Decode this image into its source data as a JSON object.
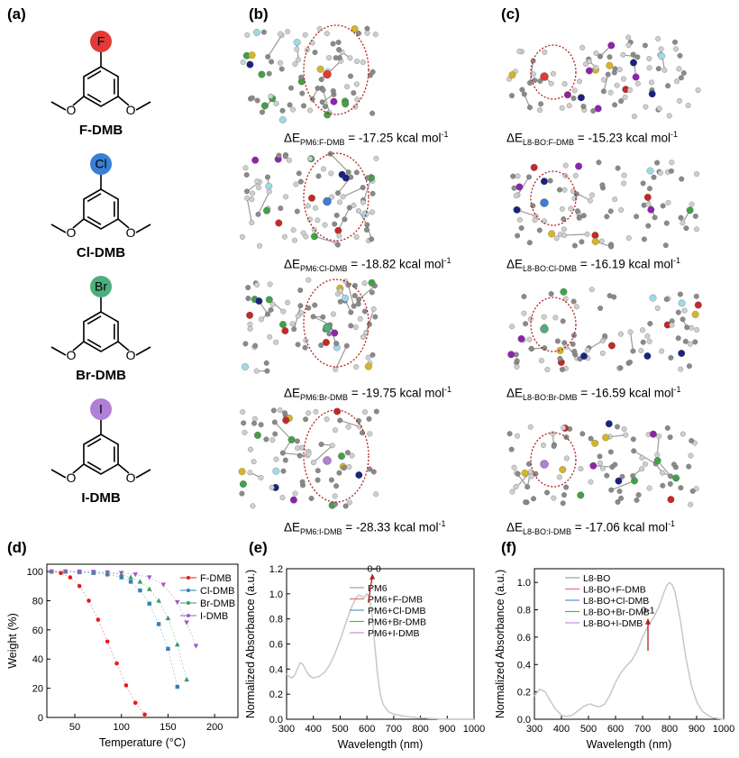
{
  "panel_labels": {
    "a": "(a)",
    "b": "(b)",
    "c": "(c)",
    "d": "(d)",
    "e": "(e)",
    "f": "(f)"
  },
  "molecules": [
    {
      "name": "F-DMB",
      "atom": "F",
      "color": "#e53935"
    },
    {
      "name": "Cl-DMB",
      "atom": "Cl",
      "color": "#3a7fd5"
    },
    {
      "name": "Br-DMB",
      "atom": "Br",
      "color": "#4caf7d"
    },
    {
      "name": "I-DMB",
      "atom": "I",
      "color": "#b07fd8"
    }
  ],
  "pm6_energies": [
    {
      "sub": "PM6:F-DMB",
      "value": "-17.25",
      "unit": "kcal mol",
      "sup": "-1"
    },
    {
      "sub": "PM6:Cl-DMB",
      "value": "-18.82",
      "unit": "kcal mol",
      "sup": "-1"
    },
    {
      "sub": "PM6:Br-DMB",
      "value": "-19.75",
      "unit": "kcal mol",
      "sup": "-1"
    },
    {
      "sub": "PM6:I-DMB",
      "value": "-28.33",
      "unit": "kcal mol",
      "sup": "-1"
    }
  ],
  "l8_energies": [
    {
      "sub": "L8-BO:F-DMB",
      "value": "-15.23",
      "unit": "kcal mol",
      "sup": "-1"
    },
    {
      "sub": "L8-BO:Cl-DMB",
      "value": "-16.19",
      "unit": "kcal mol",
      "sup": "-1"
    },
    {
      "sub": "L8-BO:Br-DMB",
      "value": "-16.59",
      "unit": "kcal mol",
      "sup": "-1"
    },
    {
      "sub": "L8-BO:I-DMB",
      "value": "-17.06",
      "unit": "kcal mol",
      "sup": "-1"
    }
  ],
  "delta_symbol": "ΔE",
  "equals": " = ",
  "chart_data": [
    {
      "type": "scatter",
      "panel": "(d)",
      "xlabel": "Temperature (°C)",
      "ylabel": "Weight (%)",
      "xlim": [
        20,
        225
      ],
      "ylim": [
        0,
        105
      ],
      "xticks": [
        50,
        100,
        150,
        200
      ],
      "yticks": [
        0,
        20,
        40,
        60,
        80,
        100
      ],
      "legend_position": "top-right",
      "series": [
        {
          "name": "F-DMB",
          "color": "#e41a1c",
          "marker": "circle",
          "x": [
            25,
            35,
            45,
            55,
            65,
            75,
            85,
            95,
            105,
            115,
            125
          ],
          "y": [
            100,
            99,
            96,
            90,
            80,
            67,
            52,
            37,
            22,
            10,
            2
          ]
        },
        {
          "name": "Cl-DMB",
          "color": "#377eb8",
          "marker": "square",
          "x": [
            25,
            40,
            55,
            70,
            85,
            100,
            110,
            120,
            130,
            140,
            150,
            160
          ],
          "y": [
            100,
            100,
            99.5,
            99,
            98,
            96,
            93,
            87,
            78,
            64,
            47,
            21
          ]
        },
        {
          "name": "Br-DMB",
          "color": "#3a9a6a",
          "marker": "triangle-up",
          "x": [
            25,
            40,
            55,
            70,
            85,
            100,
            110,
            120,
            130,
            140,
            150,
            160,
            170
          ],
          "y": [
            100,
            100,
            99.8,
            99.5,
            99,
            98,
            96,
            93,
            88,
            80,
            68,
            50,
            26
          ]
        },
        {
          "name": "I-DMB",
          "color": "#9b59d0",
          "marker": "triangle-down",
          "x": [
            25,
            40,
            55,
            70,
            85,
            100,
            115,
            130,
            145,
            160,
            170,
            180
          ],
          "y": [
            100,
            100,
            100,
            99.8,
            99.5,
            99,
            98,
            96,
            91,
            79,
            65,
            49
          ]
        }
      ]
    },
    {
      "type": "line",
      "panel": "(e)",
      "xlabel": "Wavelength (nm)",
      "ylabel": "Normalized Absorbance (a.u.)",
      "xlim": [
        300,
        1000
      ],
      "ylim": [
        0,
        1.2
      ],
      "xticks": [
        300,
        400,
        500,
        600,
        700,
        800,
        900,
        1000
      ],
      "yticks": [
        0.0,
        0.2,
        0.4,
        0.6,
        0.8,
        1.0,
        1.2
      ],
      "legend_position": "top-right",
      "annotation": {
        "text": "0-0",
        "arrow_from": [
          605,
          0.93
        ],
        "arrow_to": [
          620,
          1.14
        ]
      },
      "x": [
        300,
        310,
        320,
        330,
        340,
        350,
        360,
        370,
        380,
        390,
        400,
        420,
        440,
        460,
        480,
        500,
        520,
        540,
        560,
        570,
        580,
        590,
        600,
        610,
        620,
        630,
        640,
        650,
        660,
        680,
        700,
        750,
        800,
        850,
        900,
        950,
        1000
      ],
      "series": [
        {
          "name": "PM6",
          "color": "#9e9e9e",
          "y": [
            0.36,
            0.34,
            0.33,
            0.35,
            0.4,
            0.45,
            0.44,
            0.4,
            0.36,
            0.34,
            0.33,
            0.34,
            0.37,
            0.43,
            0.52,
            0.63,
            0.76,
            0.88,
            0.97,
            0.99,
            0.98,
            0.97,
            1.0,
            0.97,
            0.82,
            0.57,
            0.35,
            0.2,
            0.12,
            0.06,
            0.04,
            0.02,
            0.01,
            0.005,
            0.0,
            0.0,
            0.0
          ]
        },
        {
          "name": "PM6+F-DMB",
          "color": "#e07070",
          "y": [
            0.36,
            0.34,
            0.33,
            0.35,
            0.4,
            0.45,
            0.44,
            0.4,
            0.36,
            0.34,
            0.33,
            0.34,
            0.37,
            0.43,
            0.52,
            0.63,
            0.76,
            0.88,
            0.97,
            0.99,
            0.98,
            0.97,
            1.0,
            0.97,
            0.82,
            0.57,
            0.35,
            0.2,
            0.12,
            0.06,
            0.04,
            0.02,
            0.01,
            0.005,
            0.0,
            0.0,
            0.0
          ]
        },
        {
          "name": "PM6+Cl-DMB",
          "color": "#5a8fd0",
          "y": [
            0.36,
            0.34,
            0.33,
            0.35,
            0.4,
            0.45,
            0.44,
            0.4,
            0.36,
            0.34,
            0.33,
            0.34,
            0.37,
            0.43,
            0.52,
            0.63,
            0.76,
            0.88,
            0.97,
            0.99,
            0.98,
            0.97,
            1.0,
            0.97,
            0.82,
            0.57,
            0.35,
            0.2,
            0.12,
            0.06,
            0.04,
            0.02,
            0.01,
            0.005,
            0.0,
            0.0,
            0.0
          ]
        },
        {
          "name": "PM6+Br-DMB",
          "color": "#4caf7d",
          "y": [
            0.36,
            0.34,
            0.33,
            0.35,
            0.4,
            0.45,
            0.44,
            0.4,
            0.36,
            0.34,
            0.33,
            0.34,
            0.37,
            0.43,
            0.52,
            0.63,
            0.76,
            0.88,
            0.97,
            0.99,
            0.98,
            0.97,
            1.0,
            0.97,
            0.82,
            0.57,
            0.35,
            0.2,
            0.12,
            0.06,
            0.04,
            0.02,
            0.01,
            0.005,
            0.0,
            0.0,
            0.0
          ]
        },
        {
          "name": "PM6+I-DMB",
          "color": "#c090e0",
          "y": [
            0.36,
            0.34,
            0.33,
            0.35,
            0.4,
            0.45,
            0.44,
            0.4,
            0.36,
            0.34,
            0.33,
            0.34,
            0.37,
            0.43,
            0.52,
            0.63,
            0.76,
            0.88,
            0.97,
            0.99,
            0.98,
            0.97,
            1.0,
            0.97,
            0.82,
            0.57,
            0.35,
            0.2,
            0.12,
            0.06,
            0.04,
            0.02,
            0.01,
            0.005,
            0.0,
            0.0,
            0.0
          ]
        }
      ]
    },
    {
      "type": "line",
      "panel": "(f)",
      "xlabel": "Wavelength (nm)",
      "ylabel": "Normalized Absorbance (a.u.)",
      "xlim": [
        300,
        1000
      ],
      "ylim": [
        0,
        1.1
      ],
      "xticks": [
        300,
        400,
        500,
        600,
        700,
        800,
        900,
        1000
      ],
      "yticks": [
        0.0,
        0.2,
        0.4,
        0.6,
        0.8,
        1.0
      ],
      "legend_position": "top-left",
      "annotation": {
        "text": "0-1",
        "arrow_from": [
          720,
          0.5
        ],
        "arrow_to": [
          720,
          0.72
        ]
      },
      "x": [
        300,
        320,
        340,
        360,
        380,
        400,
        420,
        440,
        460,
        480,
        500,
        510,
        520,
        540,
        560,
        580,
        600,
        620,
        640,
        660,
        680,
        700,
        720,
        740,
        760,
        780,
        790,
        800,
        810,
        820,
        840,
        860,
        880,
        900,
        920,
        940,
        960,
        980,
        1000
      ],
      "series": [
        {
          "name": "L8-BO",
          "color": "#9e9e9e",
          "y": [
            0.17,
            0.22,
            0.2,
            0.13,
            0.07,
            0.03,
            0.02,
            0.03,
            0.06,
            0.09,
            0.11,
            0.11,
            0.1,
            0.09,
            0.11,
            0.18,
            0.27,
            0.34,
            0.39,
            0.43,
            0.5,
            0.6,
            0.68,
            0.74,
            0.82,
            0.93,
            0.98,
            1.0,
            0.98,
            0.93,
            0.72,
            0.45,
            0.25,
            0.13,
            0.06,
            0.03,
            0.01,
            0.005,
            0.0
          ]
        },
        {
          "name": "L8-BO+F-DMB",
          "color": "#e07070",
          "y": [
            0.17,
            0.22,
            0.2,
            0.13,
            0.07,
            0.03,
            0.02,
            0.03,
            0.06,
            0.09,
            0.11,
            0.11,
            0.1,
            0.09,
            0.11,
            0.18,
            0.27,
            0.34,
            0.39,
            0.43,
            0.5,
            0.6,
            0.68,
            0.74,
            0.82,
            0.93,
            0.98,
            1.0,
            0.98,
            0.93,
            0.72,
            0.45,
            0.25,
            0.13,
            0.06,
            0.03,
            0.01,
            0.005,
            0.0
          ]
        },
        {
          "name": "L8-BO+Cl-DMB",
          "color": "#5a8fd0",
          "y": [
            0.17,
            0.22,
            0.2,
            0.13,
            0.07,
            0.03,
            0.02,
            0.03,
            0.06,
            0.09,
            0.11,
            0.11,
            0.1,
            0.09,
            0.11,
            0.18,
            0.27,
            0.34,
            0.39,
            0.43,
            0.5,
            0.6,
            0.68,
            0.74,
            0.82,
            0.93,
            0.98,
            1.0,
            0.98,
            0.93,
            0.72,
            0.45,
            0.25,
            0.13,
            0.06,
            0.03,
            0.01,
            0.005,
            0.0
          ]
        },
        {
          "name": "L8-BO+Br-DMB",
          "color": "#4caf7d",
          "y": [
            0.17,
            0.22,
            0.2,
            0.13,
            0.07,
            0.03,
            0.02,
            0.03,
            0.06,
            0.09,
            0.11,
            0.11,
            0.1,
            0.09,
            0.11,
            0.18,
            0.27,
            0.34,
            0.39,
            0.43,
            0.5,
            0.6,
            0.68,
            0.74,
            0.82,
            0.93,
            0.98,
            1.0,
            0.98,
            0.93,
            0.72,
            0.45,
            0.25,
            0.13,
            0.06,
            0.03,
            0.01,
            0.005,
            0.0
          ]
        },
        {
          "name": "L8-BO+I-DMB",
          "color": "#c090e0",
          "y": [
            0.17,
            0.22,
            0.2,
            0.13,
            0.07,
            0.03,
            0.02,
            0.03,
            0.06,
            0.09,
            0.11,
            0.11,
            0.1,
            0.09,
            0.11,
            0.18,
            0.27,
            0.34,
            0.39,
            0.43,
            0.5,
            0.6,
            0.68,
            0.74,
            0.82,
            0.93,
            0.98,
            1.0,
            0.98,
            0.93,
            0.72,
            0.45,
            0.25,
            0.13,
            0.06,
            0.03,
            0.01,
            0.005,
            0.0
          ]
        }
      ]
    }
  ]
}
